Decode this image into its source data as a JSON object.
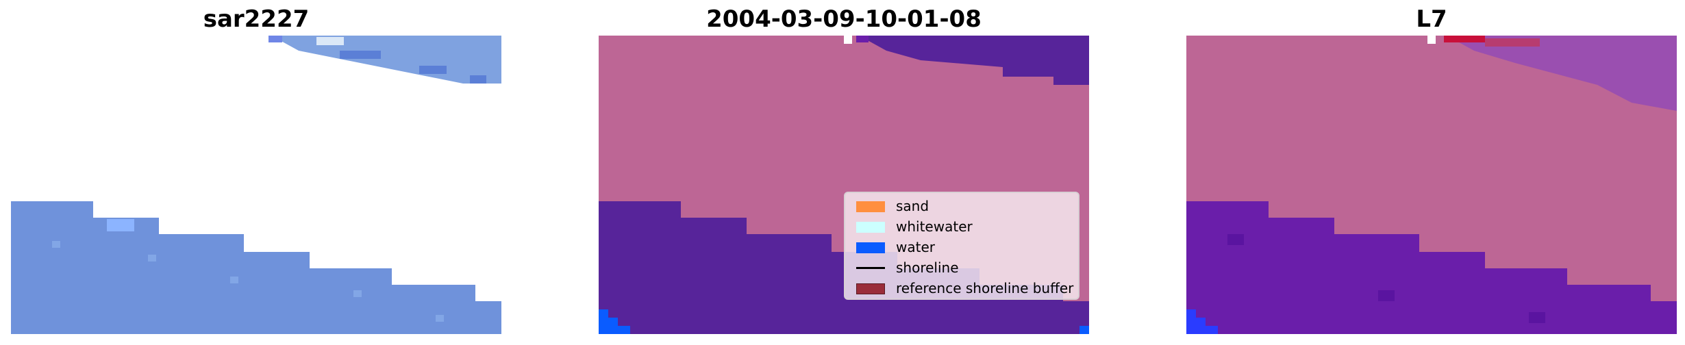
{
  "panels": [
    {
      "title": "sar2227"
    },
    {
      "title": "2004-03-09-10-01-08"
    },
    {
      "title": "L7"
    }
  ],
  "legend": {
    "items": [
      {
        "label": "sand",
        "color": "#ff8f3f",
        "kind": "patch"
      },
      {
        "label": "whitewater",
        "color": "#ccffff",
        "kind": "patch"
      },
      {
        "label": "water",
        "color": "#0a5cff",
        "kind": "patch"
      },
      {
        "label": "shoreline",
        "color": "#000000",
        "kind": "line"
      },
      {
        "label": "reference shoreline buffer",
        "color": "#9a2d3a",
        "kind": "patch"
      }
    ]
  },
  "colors": {
    "rgb_land": "#ffffff",
    "rgb_water": "#6f92db",
    "class_land": "#bd6695",
    "class_water": "#57249a",
    "ref_land": "#bd6695",
    "ref_water": "#6a1eaa"
  }
}
